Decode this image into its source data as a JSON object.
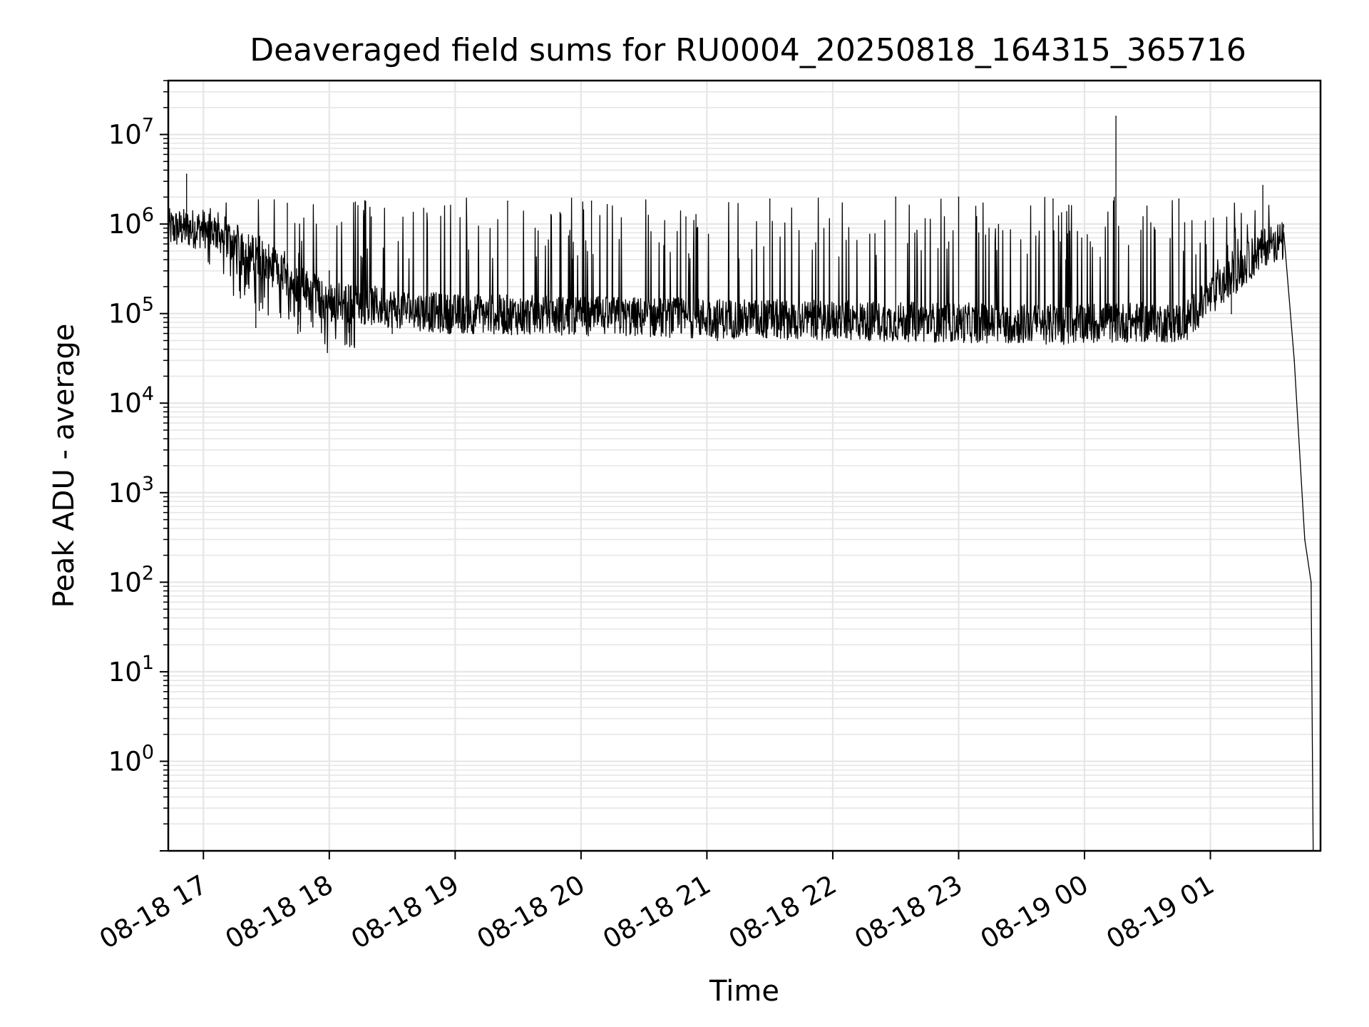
{
  "chart_data": {
    "type": "line",
    "title": "Deaveraged field sums for RU0004_20250818_164315_365716",
    "xlabel": "Time",
    "ylabel": "Peak ADU - average",
    "yscale": "log",
    "ylim": [
      0.1,
      40000000
    ],
    "xlim": [
      "2025-08-18 16:43:15",
      "2025-08-19 01:52:30"
    ],
    "grid": true,
    "line_color": "#000000",
    "grid_color": "#e6e6e6",
    "x_ticks": [
      {
        "label": "08-18 17",
        "value": "2025-08-18 17:00"
      },
      {
        "label": "08-18 18",
        "value": "2025-08-18 18:00"
      },
      {
        "label": "08-18 19",
        "value": "2025-08-18 19:00"
      },
      {
        "label": "08-18 20",
        "value": "2025-08-18 20:00"
      },
      {
        "label": "08-18 21",
        "value": "2025-08-18 21:00"
      },
      {
        "label": "08-18 22",
        "value": "2025-08-18 22:00"
      },
      {
        "label": "08-18 23",
        "value": "2025-08-18 23:00"
      },
      {
        "label": "08-19 00",
        "value": "2025-08-19 00:00"
      },
      {
        "label": "08-19 01",
        "value": "2025-08-19 01:00"
      }
    ],
    "y_ticks": [
      {
        "base": "10",
        "exp": "0",
        "value": 1
      },
      {
        "base": "10",
        "exp": "1",
        "value": 10
      },
      {
        "base": "10",
        "exp": "2",
        "value": 100
      },
      {
        "base": "10",
        "exp": "3",
        "value": 1000
      },
      {
        "base": "10",
        "exp": "4",
        "value": 10000
      },
      {
        "base": "10",
        "exp": "5",
        "value": 100000
      },
      {
        "base": "10",
        "exp": "6",
        "value": 1000000
      },
      {
        "base": "10",
        "exp": "7",
        "value": 10000000
      }
    ],
    "series": [
      {
        "points": [
          [
            "2025-08-18 16:43",
            800000
          ],
          [
            "2025-08-18 16:50",
            1000000
          ],
          [
            "2025-08-18 16:52",
            3600000
          ],
          [
            "2025-08-18 16:55",
            900000
          ],
          [
            "2025-08-18 17:05",
            1000000
          ],
          [
            "2025-08-18 17:15",
            700000
          ],
          [
            "2025-08-18 17:20",
            200000
          ],
          [
            "2025-08-18 17:25",
            70000
          ],
          [
            "2025-08-18 17:30",
            250000
          ],
          [
            "2025-08-18 17:40",
            1700000
          ],
          [
            "2025-08-18 17:45",
            60000
          ],
          [
            "2025-08-18 18:00",
            300000
          ],
          [
            "2025-08-18 18:10",
            80000
          ],
          [
            "2025-08-18 18:20",
            1200000
          ],
          [
            "2025-08-18 18:30",
            60000
          ],
          [
            "2025-08-18 18:45",
            1500000
          ],
          [
            "2025-08-18 19:00",
            150000
          ],
          [
            "2025-08-18 19:15",
            90000
          ],
          [
            "2025-08-18 19:25",
            1800000
          ],
          [
            "2025-08-18 19:45",
            110000
          ],
          [
            "2025-08-18 20:05",
            1800000
          ],
          [
            "2025-08-18 20:30",
            100000
          ],
          [
            "2025-08-18 20:50",
            1200000
          ],
          [
            "2025-08-18 21:05",
            50000
          ],
          [
            "2025-08-18 21:30",
            1900000
          ],
          [
            "2025-08-18 21:50",
            110000
          ],
          [
            "2025-08-18 22:00",
            70000
          ],
          [
            "2025-08-18 22:30",
            2000000
          ],
          [
            "2025-08-18 22:45",
            60000
          ],
          [
            "2025-08-18 23:00",
            2000000
          ],
          [
            "2025-08-18 23:20",
            60000
          ],
          [
            "2025-08-18 23:45",
            1900000
          ],
          [
            "2025-08-19 00:15",
            16000000
          ],
          [
            "2025-08-19 00:20",
            100000
          ],
          [
            "2025-08-19 00:45",
            1900000
          ],
          [
            "2025-08-19 01:10",
            100000
          ],
          [
            "2025-08-19 01:25",
            2700000
          ],
          [
            "2025-08-19 01:35",
            800000
          ],
          [
            "2025-08-19 01:40",
            30000
          ],
          [
            "2025-08-19 01:45",
            300
          ],
          [
            "2025-08-19 01:48",
            100
          ],
          [
            "2025-08-19 01:49",
            0.1
          ]
        ]
      }
    ]
  }
}
